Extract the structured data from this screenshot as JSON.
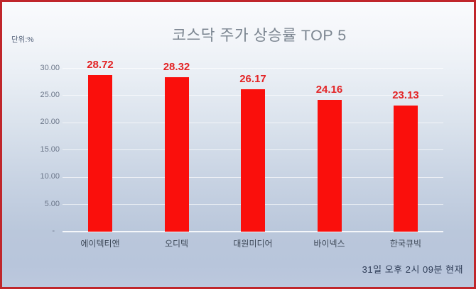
{
  "chart_data": {
    "type": "bar",
    "title": "코스닥 주가 상승률 TOP 5",
    "unit_note": "단위:%",
    "timestamp_note": "31일 오후 2시 09분 현재",
    "categories": [
      "에이텍티앤",
      "오디텍",
      "대원미디어",
      "바이넥스",
      "한국큐빅"
    ],
    "values": [
      28.72,
      28.32,
      26.17,
      24.16,
      23.13
    ],
    "value_labels": [
      "28.72",
      "28.32",
      "26.17",
      "24.16",
      "23.13"
    ],
    "ylim": [
      0,
      30
    ],
    "yticks": [
      {
        "value": 30,
        "label": "30.00"
      },
      {
        "value": 25,
        "label": "25.00"
      },
      {
        "value": 20,
        "label": "20.00"
      },
      {
        "value": 15,
        "label": "15.00"
      },
      {
        "value": 10,
        "label": "10.00"
      },
      {
        "value": 5,
        "label": "5.00"
      },
      {
        "value": 0,
        "label": "-"
      }
    ],
    "grid": true,
    "legend": "none",
    "xlabel": "",
    "ylabel": ""
  },
  "colors": {
    "bar": "#fa0f0c",
    "value_label": "#e32325",
    "frame_border": "#c0262b",
    "title_text": "#7c8691",
    "axis_text": "#6b7689",
    "category_text": "#3e4958",
    "timestamp_text": "#2d3b55",
    "background_top": "#fafbfd",
    "background_bottom": "#bdc9de"
  }
}
